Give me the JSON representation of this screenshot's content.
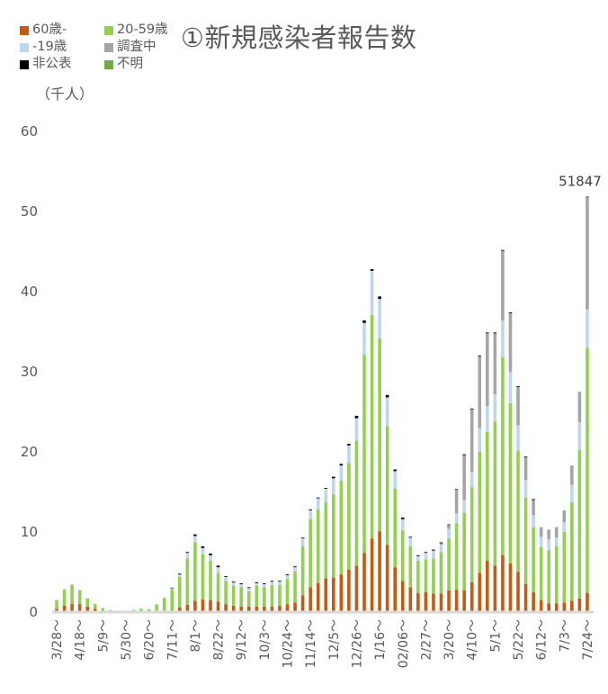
{
  "chart_data": {
    "type": "bar",
    "stacked": true,
    "title": "①新規感染者報告数",
    "ylabel": "（千人）",
    "xlabel": "",
    "ylim": [
      0,
      60
    ],
    "yticks": [
      0,
      10,
      20,
      30,
      40,
      50,
      60
    ],
    "grid": false,
    "legend_position": "top-left",
    "x": [
      "3/28～",
      "4/4～",
      "4/11～",
      "4/18～",
      "4/25～",
      "5/2～",
      "5/9～",
      "5/16～",
      "5/23～",
      "5/30～",
      "6/6～",
      "6/13～",
      "6/20～",
      "6/27～",
      "7/4～",
      "7/11～",
      "7/18～",
      "7/25～",
      "8/1～",
      "8/8～",
      "8/15～",
      "8/22～",
      "8/29～",
      "9/5～",
      "9/12～",
      "9/19～",
      "9/26～",
      "10/3～",
      "10/10～",
      "10/17～",
      "10/24～",
      "10/31～",
      "11/7～",
      "11/14～",
      "11/21～",
      "11/28～",
      "12/5～",
      "12/12～",
      "12/19～",
      "12/26～",
      "1/2～",
      "1/9～",
      "1/16～",
      "1/23～",
      "1/30～",
      "02/06～",
      "2/13～",
      "2/20～",
      "2/27～",
      "3/6～",
      "3/13～",
      "3/20～",
      "3/27～",
      "4/3～",
      "4/10～",
      "4/17～",
      "4/24～",
      "5/1～",
      "5/8～",
      "5/15～",
      "5/22～",
      "5/29～",
      "6/5～",
      "6/12～",
      "6/19～",
      "6/26～",
      "7/3～",
      "7/10～",
      "7/17～",
      "7/24～"
    ],
    "tick_labels": [
      "3/28～",
      "4/18～",
      "5/9～",
      "5/30～",
      "6/20～",
      "7/11～",
      "8/1～",
      "8/22～",
      "9/12～",
      "10/3～",
      "10/24～",
      "11/14～",
      "12/5～",
      "12/26～",
      "1/16～",
      "02/06～",
      "2/27～",
      "3/20～",
      "4/10～",
      "5/1～",
      "5/22～",
      "6/12～",
      "7/3～",
      "7/24～"
    ],
    "tick_every": 3,
    "series": [
      {
        "name": "60歳-",
        "color": "#c55a11",
        "values": [
          0.4,
          0.8,
          1.0,
          1.0,
          0.7,
          0.4,
          0.1,
          0.05,
          0.03,
          0.03,
          0.05,
          0.08,
          0.1,
          0.1,
          0.15,
          0.2,
          0.6,
          0.9,
          1.4,
          1.6,
          1.5,
          1.3,
          1.0,
          0.8,
          0.7,
          0.7,
          0.7,
          0.7,
          0.7,
          0.8,
          1.0,
          1.2,
          2.1,
          3.1,
          3.6,
          4.2,
          4.3,
          4.7,
          5.3,
          5.8,
          7.4,
          9.2,
          10.1,
          8.4,
          5.6,
          3.9,
          3.1,
          2.4,
          2.5,
          2.3,
          2.3,
          2.7,
          2.8,
          2.7,
          3.7,
          4.9,
          6.4,
          5.8,
          7.1,
          6.1,
          5.0,
          3.5,
          2.5,
          1.5,
          1.1,
          1.1,
          1.2,
          1.4,
          1.7,
          2.4
        ]
      },
      {
        "name": "20-59歳",
        "color": "#92d050",
        "values": [
          1.1,
          2.0,
          2.4,
          1.7,
          1.0,
          0.6,
          0.4,
          0.2,
          0.15,
          0.15,
          0.22,
          0.32,
          0.25,
          0.85,
          1.6,
          2.6,
          3.8,
          5.8,
          7.3,
          5.6,
          4.9,
          3.6,
          2.9,
          2.5,
          2.4,
          1.9,
          2.6,
          2.4,
          2.7,
          2.6,
          3.1,
          3.9,
          6.1,
          8.5,
          9.2,
          9.5,
          10.4,
          11.7,
          13.3,
          15.6,
          24.7,
          27.9,
          24.1,
          14.8,
          9.8,
          6.3,
          5.1,
          4.0,
          4.1,
          4.4,
          5.2,
          6.5,
          8.3,
          9.7,
          11.9,
          15.1,
          16.1,
          18.0,
          24.7,
          20.0,
          15.2,
          10.8,
          8.1,
          6.6,
          6.6,
          7.1,
          8.8,
          12.3,
          18.6,
          30.6
        ]
      },
      {
        "name": "-19歳",
        "color": "#bdd7ee",
        "values": [
          0.05,
          0.1,
          0.1,
          0.1,
          0.05,
          0.05,
          0.05,
          0.03,
          0.02,
          0.02,
          0.03,
          0.05,
          0.05,
          0.05,
          0.1,
          0.2,
          0.3,
          0.7,
          0.8,
          0.8,
          0.7,
          0.7,
          0.5,
          0.4,
          0.4,
          0.4,
          0.3,
          0.4,
          0.4,
          0.4,
          0.5,
          0.5,
          1.0,
          1.1,
          1.4,
          1.7,
          2.0,
          1.9,
          2.2,
          2.8,
          4.0,
          5.5,
          4.9,
          3.6,
          2.2,
          1.4,
          1.1,
          0.6,
          0.8,
          0.9,
          0.9,
          1.2,
          1.2,
          1.6,
          1.9,
          3.0,
          3.2,
          3.4,
          4.6,
          3.9,
          3.1,
          2.2,
          1.5,
          1.3,
          1.4,
          1.1,
          1.2,
          2.2,
          3.4,
          4.8
        ]
      },
      {
        "name": "調査中",
        "color": "#a5a5a5",
        "values": [
          0,
          0,
          0,
          0,
          0,
          0,
          0,
          0,
          0,
          0,
          0,
          0,
          0,
          0,
          0,
          0,
          0,
          0,
          0,
          0,
          0,
          0,
          0,
          0,
          0,
          0,
          0,
          0,
          0,
          0,
          0,
          0,
          0,
          0,
          0,
          0,
          0,
          0,
          0,
          0,
          0,
          0,
          0,
          0,
          0,
          0,
          0,
          0,
          0,
          0.1,
          0.2,
          0.5,
          3.0,
          5.6,
          7.8,
          8.9,
          9.1,
          7.6,
          8.7,
          7.3,
          4.8,
          2.8,
          1.9,
          1.2,
          1.2,
          1.3,
          1.5,
          2.4,
          3.8,
          14.0
        ]
      },
      {
        "name": "非公表",
        "color": "#000000",
        "values": [
          0,
          0,
          0,
          0,
          0,
          0,
          0,
          0,
          0,
          0,
          0,
          0,
          0,
          0,
          0,
          0.05,
          0.1,
          0.1,
          0.2,
          0.2,
          0.2,
          0.2,
          0.1,
          0.1,
          0.1,
          0.1,
          0.1,
          0.1,
          0.1,
          0.1,
          0.1,
          0.1,
          0.1,
          0.1,
          0.1,
          0.1,
          0.2,
          0.2,
          0.2,
          0.3,
          0.3,
          0.2,
          0.3,
          0.3,
          0.2,
          0.2,
          0.1,
          0.1,
          0.1,
          0.1,
          0.1,
          0.05,
          0.05,
          0.1,
          0.1,
          0.1,
          0.1,
          0.1,
          0.1,
          0.1,
          0.1,
          0.1,
          0.1,
          0,
          0,
          0,
          0,
          0,
          0,
          0.047
        ]
      },
      {
        "name": "不明",
        "color": "#70ad47",
        "values": [
          0,
          0,
          0,
          0,
          0,
          0,
          0,
          0,
          0,
          0,
          0,
          0,
          0,
          0,
          0,
          0,
          0,
          0,
          0,
          0,
          0,
          0,
          0,
          0,
          0,
          0,
          0,
          0,
          0,
          0,
          0,
          0,
          0,
          0,
          0,
          0,
          0,
          0,
          0,
          0,
          0,
          0,
          0,
          0,
          0,
          0,
          0,
          0,
          0,
          0,
          0,
          0,
          0,
          0,
          0,
          0,
          0,
          0,
          0,
          0,
          0,
          0,
          0,
          0,
          0,
          0,
          0,
          0,
          0,
          0
        ]
      }
    ],
    "annotations": [
      {
        "x": "7/24～",
        "text": "51847"
      }
    ]
  },
  "legend": {
    "items": [
      {
        "label": "60歳-",
        "color": "#c55a11"
      },
      {
        "label": "20-59歳",
        "color": "#92d050"
      },
      {
        "label": "-19歳",
        "color": "#bdd7ee"
      },
      {
        "label": "調査中",
        "color": "#a5a5a5"
      },
      {
        "label": "非公表",
        "color": "#000000"
      },
      {
        "label": "不明",
        "color": "#70ad47"
      }
    ]
  },
  "title": "①新規感染者報告数",
  "unit": "（千人）"
}
